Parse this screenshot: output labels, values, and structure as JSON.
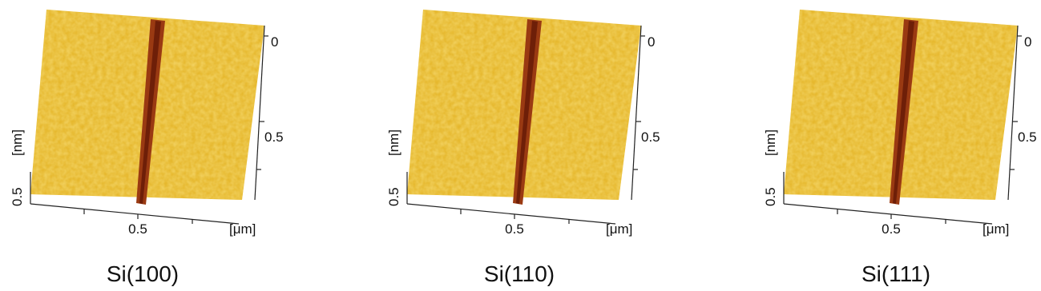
{
  "panels": [
    {
      "caption": "Si(100)",
      "height_axis_label": "[nm]",
      "height_axis_tick": "0.5",
      "x_axis_label": "[μm]",
      "x_axis_tick": "0.5",
      "y_axis_ticks": [
        "0",
        "0.5"
      ]
    },
    {
      "caption": "Si(110)",
      "height_axis_label": "[nm]",
      "height_axis_tick": "0.5",
      "x_axis_label": "[μm]",
      "x_axis_tick": "0.5",
      "y_axis_ticks": [
        "0",
        "0.5"
      ]
    },
    {
      "caption": "Si(111)",
      "height_axis_label": "[nm]",
      "height_axis_tick": "0.5",
      "x_axis_label": "[μm]",
      "x_axis_tick": "0.5",
      "y_axis_ticks": [
        "0",
        "0.5"
      ]
    }
  ]
}
